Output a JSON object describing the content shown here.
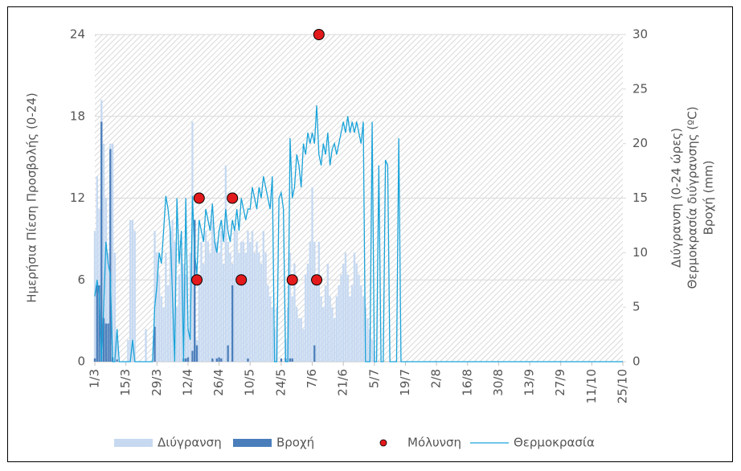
{
  "chart_data": {
    "type": "combo",
    "ylabel": "Ημερήσια Πίεση Προσβολής (0-24)",
    "y2label": [
      "Διύγρανση (0-24 ώρες)",
      "Θερμοκρασία διύγρανσης (ºC)",
      "Βροχή (mm)"
    ],
    "xlim": [
      0,
      238
    ],
    "xticks": [
      {
        "value": 0,
        "label": "1/3"
      },
      {
        "value": 14,
        "label": "15/3"
      },
      {
        "value": 28,
        "label": "29/3"
      },
      {
        "value": 42,
        "label": "12/4"
      },
      {
        "value": 56,
        "label": "26/4"
      },
      {
        "value": 70,
        "label": "10/5"
      },
      {
        "value": 84,
        "label": "24/5"
      },
      {
        "value": 98,
        "label": "7/6"
      },
      {
        "value": 112,
        "label": "21/6"
      },
      {
        "value": 126,
        "label": "5/7"
      },
      {
        "value": 140,
        "label": "19/7"
      },
      {
        "value": 154,
        "label": "2/8"
      },
      {
        "value": 168,
        "label": "16/8"
      },
      {
        "value": 182,
        "label": "30/8"
      },
      {
        "value": 196,
        "label": "13/9"
      },
      {
        "value": 210,
        "label": "27/9"
      },
      {
        "value": 224,
        "label": "11/10"
      },
      {
        "value": 238,
        "label": "25/10"
      }
    ],
    "ylim": [
      0,
      24
    ],
    "yticks": [
      0,
      6,
      12,
      18,
      24
    ],
    "y2lim": [
      0,
      30
    ],
    "y2ticks": [
      0,
      5,
      10,
      15,
      20,
      25,
      30
    ],
    "grid": true,
    "series": [
      {
        "name": "Διύγρανση",
        "type": "bar",
        "axis": "y2",
        "color": "#c6d9f1",
        "x": [
          0,
          1,
          2,
          3,
          4,
          5,
          6,
          7,
          8,
          9,
          10,
          11,
          12,
          13,
          14,
          15,
          16,
          17,
          18,
          19,
          20,
          21,
          22,
          23,
          24,
          25,
          26,
          27,
          28,
          29,
          30,
          31,
          32,
          33,
          34,
          35,
          36,
          37,
          38,
          39,
          40,
          41,
          42,
          43,
          44,
          45,
          46,
          47,
          48,
          49,
          50,
          51,
          52,
          53,
          54,
          55,
          56,
          57,
          58,
          59,
          60,
          61,
          62,
          63,
          64,
          65,
          66,
          67,
          68,
          69,
          70,
          71,
          72,
          73,
          74,
          75,
          76,
          77,
          78,
          79,
          80,
          81,
          82,
          83,
          84,
          85,
          86,
          87,
          88,
          89,
          90,
          91,
          92,
          93,
          94,
          95,
          96,
          97,
          98,
          99,
          100,
          101,
          102,
          103,
          104,
          105,
          106,
          107,
          108,
          109,
          110,
          111,
          112,
          113,
          114,
          115,
          116,
          117,
          118,
          119,
          120,
          121,
          122,
          123,
          124,
          125,
          126,
          127
        ],
        "values": [
          12,
          17,
          14,
          24,
          20,
          15,
          10,
          20,
          20,
          10,
          2,
          0,
          0,
          0,
          0,
          2,
          13,
          13,
          12,
          0,
          0,
          0,
          0,
          3,
          0,
          0,
          0,
          12,
          10,
          8,
          6,
          5,
          10,
          7,
          12,
          13,
          11,
          5,
          8,
          10,
          9,
          8,
          3,
          10,
          22,
          10,
          2,
          8,
          11,
          9,
          12,
          11,
          10,
          13,
          11,
          11,
          10,
          12,
          9,
          18,
          11,
          10,
          9,
          12,
          12,
          10,
          11,
          11,
          10,
          12,
          11,
          12,
          10,
          11,
          10,
          9,
          12,
          10,
          7,
          6,
          5,
          3,
          5,
          0,
          0,
          0,
          2,
          5,
          10,
          6,
          9,
          5,
          4,
          4,
          3,
          8,
          9,
          11,
          16,
          11,
          8,
          11,
          6,
          5,
          7,
          9,
          6,
          5,
          4,
          6,
          7,
          8,
          9,
          10,
          8,
          6,
          7,
          10,
          9,
          8,
          7,
          6,
          5,
          4,
          3,
          2,
          1,
          0
        ]
      },
      {
        "name": "Βροχή",
        "type": "bar",
        "axis": "y2",
        "color": "#4a7ebb",
        "x": [
          0,
          1,
          2,
          3,
          4,
          5,
          6,
          7,
          8,
          10,
          27,
          40,
          41,
          42,
          44,
          45,
          46,
          53,
          55,
          56,
          57,
          60,
          62,
          69,
          84,
          86,
          88,
          89,
          99
        ],
        "values": [
          0.3,
          7,
          7,
          22,
          4,
          3.5,
          3.5,
          19.5,
          0.4,
          0.2,
          3.2,
          0.3,
          0.3,
          0.4,
          1,
          13,
          1.5,
          0.3,
          0.3,
          0.4,
          0.3,
          1.5,
          7,
          0.3,
          0.3,
          0.3,
          0.3,
          0.3,
          1.5
        ]
      },
      {
        "name": "Θερμοκρασία",
        "type": "line",
        "axis": "y2",
        "color": "#1aa3d9",
        "x": [
          0,
          1,
          2,
          3,
          4,
          5,
          6,
          7,
          8,
          9,
          10,
          11,
          12,
          13,
          14,
          15,
          16,
          17,
          18,
          19,
          20,
          21,
          22,
          23,
          24,
          25,
          26,
          27,
          28,
          29,
          30,
          31,
          32,
          33,
          34,
          35,
          36,
          37,
          38,
          39,
          40,
          41,
          42,
          43,
          44,
          45,
          46,
          47,
          48,
          49,
          50,
          51,
          52,
          53,
          54,
          55,
          56,
          57,
          58,
          59,
          60,
          61,
          62,
          63,
          64,
          65,
          66,
          67,
          68,
          69,
          70,
          71,
          72,
          73,
          74,
          75,
          76,
          77,
          78,
          79,
          80,
          81,
          82,
          83,
          84,
          85,
          86,
          87,
          88,
          89,
          90,
          91,
          92,
          93,
          94,
          95,
          96,
          97,
          98,
          99,
          100,
          101,
          102,
          103,
          104,
          105,
          106,
          107,
          108,
          109,
          110,
          111,
          112,
          113,
          114,
          115,
          116,
          117,
          118,
          119,
          120,
          121,
          122,
          123,
          124,
          125,
          126,
          127,
          128,
          129,
          130,
          131,
          132,
          133,
          134,
          135,
          136,
          137,
          138,
          139,
          140,
          238
        ],
        "values": [
          6,
          7.5,
          6,
          0,
          5,
          11,
          9,
          8,
          0,
          0,
          3,
          0,
          0,
          0,
          0,
          0,
          0,
          2,
          0,
          0,
          0,
          0,
          0,
          0,
          0,
          0,
          0,
          5,
          7,
          10,
          9,
          12,
          15.2,
          14,
          12,
          6,
          0,
          15,
          9,
          12,
          0,
          15,
          3,
          2,
          15.2,
          10,
          8,
          13,
          12,
          11,
          14,
          13,
          12,
          14.5,
          11,
          10,
          12,
          13,
          11,
          14,
          12,
          11,
          13,
          12,
          14,
          12,
          15,
          14,
          13,
          14,
          14,
          16,
          15,
          14,
          16,
          15,
          17,
          16,
          15,
          14,
          17,
          0,
          0,
          15,
          15.5,
          14,
          0,
          0,
          20.5,
          15,
          16,
          19,
          18,
          16,
          20,
          19,
          21,
          20,
          21,
          20,
          23.5,
          19,
          18,
          20,
          19,
          21,
          18,
          19.5,
          20,
          19,
          20,
          21,
          22,
          21,
          22.5,
          21,
          22,
          21,
          22,
          21,
          20,
          22,
          0,
          0,
          0,
          22,
          0,
          0,
          18,
          0,
          0,
          18.5,
          18,
          0,
          0,
          0,
          0,
          20.5,
          0,
          0,
          0,
          0
        ]
      },
      {
        "name": "Μόλυνση",
        "type": "scatter",
        "axis": "y",
        "color": "#e31a1c",
        "x": [
          46,
          47,
          62,
          66,
          89,
          100,
          101
        ],
        "values": [
          6,
          12,
          12,
          6,
          6,
          6,
          24
        ]
      }
    ]
  }
}
